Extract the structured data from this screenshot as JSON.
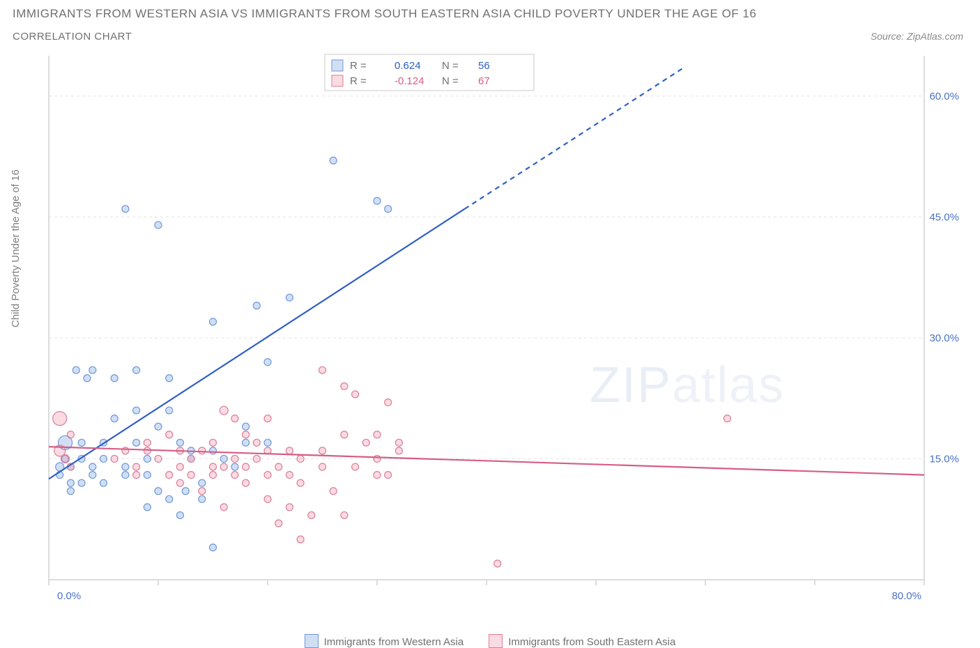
{
  "title": "IMMIGRANTS FROM WESTERN ASIA VS IMMIGRANTS FROM SOUTH EASTERN ASIA CHILD POVERTY UNDER THE AGE OF 16",
  "subtitle": "CORRELATION CHART",
  "source_label": "Source: ",
  "source_name": "ZipAtlas.com",
  "ylabel": "Child Poverty Under the Age of 16",
  "watermark_zip": "ZIP",
  "watermark_atlas": "atlas",
  "chart": {
    "type": "scatter",
    "xlim": [
      0,
      80
    ],
    "ylim": [
      0,
      65
    ],
    "xticks": [
      0,
      10,
      20,
      30,
      40,
      50,
      60,
      70,
      80
    ],
    "xtick_labels": {
      "0": "0.0%",
      "80": "80.0%"
    },
    "yticks": [
      15,
      30,
      45,
      60
    ],
    "ytick_labels": {
      "15": "15.0%",
      "30": "30.0%",
      "45": "45.0%",
      "60": "60.0%"
    },
    "grid_color": "#e3e3e3",
    "axis_color": "#dcdcdc",
    "tick_font_color_x": "#4a72c4",
    "tick_font_color_y": "#4a72c4",
    "tick_fontsize": 15,
    "legend_box": {
      "border_color": "#c8c8c8",
      "bg_color": "#ffffff",
      "r_label": "R =",
      "n_label": "N =",
      "series1": {
        "r": "0.624",
        "n": "56"
      },
      "series2": {
        "r": "-0.124",
        "n": "67"
      }
    },
    "legend_bottom": {
      "series1_label": "Immigrants from Western Asia",
      "series2_label": "Immigrants from South Eastern Asia"
    },
    "series": [
      {
        "name": "western_asia",
        "fill": "rgba(122,162,225,0.35)",
        "stroke": "#6f98d8",
        "trend": {
          "x1": 0,
          "y1": 12.5,
          "x2": 38,
          "y2": 46,
          "x1d": 38,
          "y1d": 46,
          "x2d": 58,
          "y2d": 63.5,
          "color": "#2f5fc4",
          "width": 2.2
        },
        "points": [
          [
            1,
            14,
            6
          ],
          [
            1,
            13,
            5
          ],
          [
            1.5,
            15,
            5
          ],
          [
            1.5,
            17,
            10
          ],
          [
            2,
            14,
            5
          ],
          [
            2,
            12,
            5
          ],
          [
            2,
            11,
            5
          ],
          [
            2.5,
            26,
            5
          ],
          [
            3,
            15,
            5
          ],
          [
            3,
            17,
            5
          ],
          [
            3,
            12,
            5
          ],
          [
            3.5,
            25,
            5
          ],
          [
            4,
            26,
            5
          ],
          [
            4,
            14,
            5
          ],
          [
            4,
            13,
            5
          ],
          [
            5,
            15,
            5
          ],
          [
            5,
            12,
            5
          ],
          [
            5,
            17,
            5
          ],
          [
            6,
            20,
            5
          ],
          [
            6,
            25,
            5
          ],
          [
            7,
            46,
            5
          ],
          [
            7,
            14,
            5
          ],
          [
            7,
            13,
            5
          ],
          [
            8,
            26,
            5
          ],
          [
            8,
            21,
            5
          ],
          [
            8,
            17,
            5
          ],
          [
            9,
            9,
            5
          ],
          [
            9,
            13,
            5
          ],
          [
            9,
            15,
            5
          ],
          [
            10,
            19,
            5
          ],
          [
            10,
            44,
            5
          ],
          [
            10,
            11,
            5
          ],
          [
            11,
            25,
            5
          ],
          [
            11,
            21,
            5
          ],
          [
            11,
            10,
            5
          ],
          [
            12,
            17,
            5
          ],
          [
            12,
            8,
            5
          ],
          [
            12.5,
            11,
            5
          ],
          [
            13,
            15,
            5
          ],
          [
            13,
            16,
            5
          ],
          [
            14,
            12,
            5
          ],
          [
            14,
            10,
            5
          ],
          [
            15,
            32,
            5
          ],
          [
            15,
            16,
            5
          ],
          [
            15,
            4,
            5
          ],
          [
            16,
            15,
            5
          ],
          [
            17,
            14,
            5
          ],
          [
            18,
            17,
            5
          ],
          [
            18,
            19,
            5
          ],
          [
            19,
            34,
            5
          ],
          [
            20,
            27,
            5
          ],
          [
            22,
            35,
            5
          ],
          [
            26,
            52,
            5
          ],
          [
            30,
            47,
            5
          ],
          [
            31,
            46,
            5
          ],
          [
            20,
            17,
            5
          ]
        ]
      },
      {
        "name": "south_eastern_asia",
        "fill": "rgba(235,142,165,0.32)",
        "stroke": "#dd7d98",
        "trend": {
          "x1": 0,
          "y1": 16.5,
          "x2": 80,
          "y2": 13,
          "color": "#d65d84",
          "width": 2.2
        },
        "points": [
          [
            1,
            20,
            10
          ],
          [
            1,
            16,
            8
          ],
          [
            1.5,
            15,
            6
          ],
          [
            2,
            18,
            5
          ],
          [
            2,
            14,
            5
          ],
          [
            6,
            15,
            5
          ],
          [
            7,
            16,
            5
          ],
          [
            8,
            14,
            5
          ],
          [
            8,
            13,
            5
          ],
          [
            9,
            16,
            5
          ],
          [
            9,
            17,
            5
          ],
          [
            10,
            15,
            5
          ],
          [
            11,
            13,
            5
          ],
          [
            11,
            18,
            5
          ],
          [
            12,
            16,
            5
          ],
          [
            12,
            14,
            5
          ],
          [
            12,
            12,
            5
          ],
          [
            13,
            13,
            5
          ],
          [
            13,
            15,
            5
          ],
          [
            14,
            16,
            5
          ],
          [
            14,
            11,
            5
          ],
          [
            15,
            17,
            5
          ],
          [
            15,
            14,
            5
          ],
          [
            15,
            13,
            5
          ],
          [
            16,
            21,
            6
          ],
          [
            16,
            14,
            5
          ],
          [
            16,
            9,
            5
          ],
          [
            17,
            20,
            5
          ],
          [
            17,
            15,
            5
          ],
          [
            17,
            13,
            5
          ],
          [
            18,
            18,
            5
          ],
          [
            18,
            14,
            5
          ],
          [
            18,
            12,
            5
          ],
          [
            19,
            15,
            5
          ],
          [
            19,
            17,
            5
          ],
          [
            20,
            20,
            5
          ],
          [
            20,
            16,
            5
          ],
          [
            20,
            13,
            5
          ],
          [
            20,
            10,
            5
          ],
          [
            21,
            14,
            5
          ],
          [
            21,
            7,
            5
          ],
          [
            22,
            16,
            5
          ],
          [
            22,
            13,
            5
          ],
          [
            22,
            9,
            5
          ],
          [
            23,
            15,
            5
          ],
          [
            23,
            12,
            5
          ],
          [
            23,
            5,
            5
          ],
          [
            24,
            8,
            5
          ],
          [
            25,
            16,
            5
          ],
          [
            25,
            14,
            5
          ],
          [
            25,
            26,
            5
          ],
          [
            26,
            11,
            5
          ],
          [
            27,
            18,
            5
          ],
          [
            27,
            8,
            5
          ],
          [
            28,
            23,
            5
          ],
          [
            28,
            14,
            5
          ],
          [
            29,
            17,
            5
          ],
          [
            30,
            18,
            5
          ],
          [
            30,
            13,
            5
          ],
          [
            30,
            15,
            5
          ],
          [
            31,
            13,
            5
          ],
          [
            31,
            22,
            5
          ],
          [
            32,
            17,
            5
          ],
          [
            32,
            16,
            5
          ],
          [
            41,
            2,
            5
          ],
          [
            62,
            20,
            5
          ],
          [
            27,
            24,
            5
          ]
        ]
      }
    ]
  }
}
